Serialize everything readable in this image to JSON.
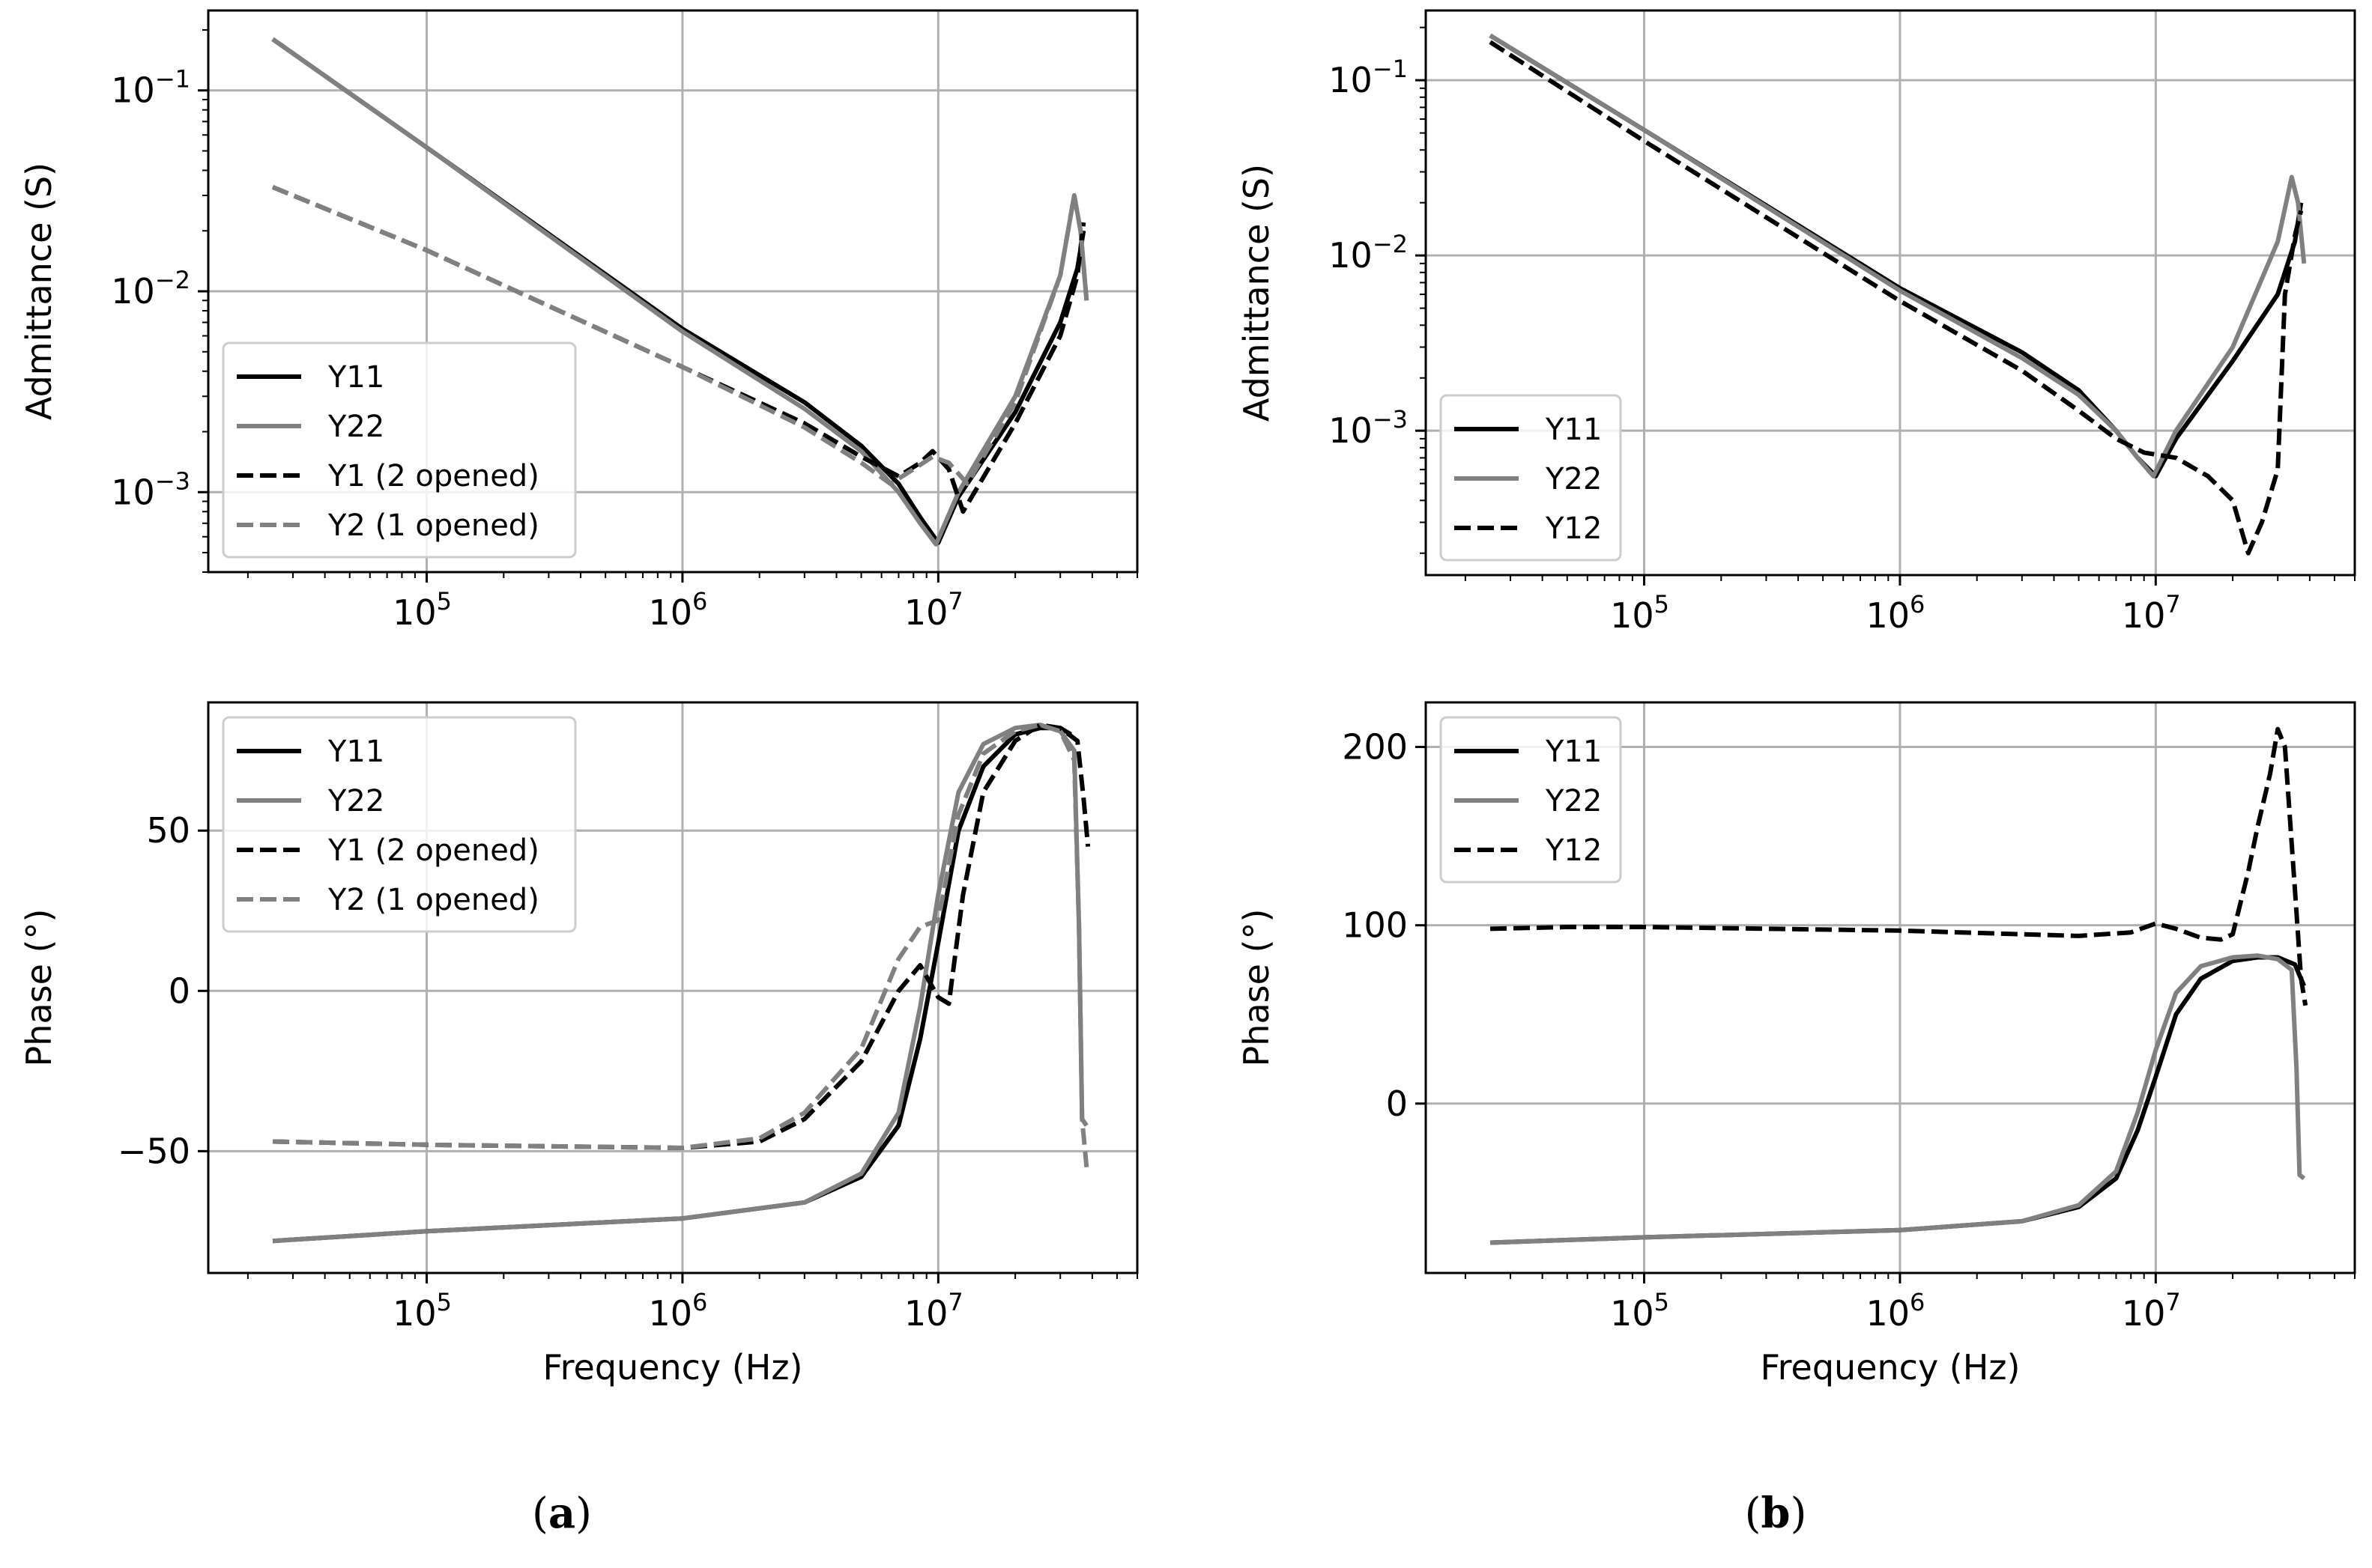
{
  "figure": {
    "panels": [
      {
        "label_prefix": "(",
        "label_letter": "a",
        "label_suffix": ")"
      },
      {
        "label_prefix": "(",
        "label_letter": "b",
        "label_suffix": ")"
      }
    ]
  },
  "chart_data": [
    {
      "id": "a-admittance",
      "type": "line",
      "xscale": "log",
      "yscale": "log",
      "xlabel": "",
      "ylabel": "Admittance (S)",
      "xlim": [
        14000,
        60000000
      ],
      "ylim": [
        0.0004,
        0.25
      ],
      "xticks": [
        {
          "base": "10",
          "exp": "5",
          "value": 100000
        },
        {
          "base": "10",
          "exp": "6",
          "value": 1000000
        },
        {
          "base": "10",
          "exp": "7",
          "value": 10000000
        }
      ],
      "yticks": [
        {
          "base": "10",
          "exp": "−1",
          "value": 0.1
        },
        {
          "base": "10",
          "exp": "−2",
          "value": 0.01
        },
        {
          "base": "10",
          "exp": "−3",
          "value": 0.001
        }
      ],
      "legend_position": "lower-left",
      "series": [
        {
          "name": "Y11",
          "color": "#000000",
          "dash": "solid",
          "x": [
            25000,
            100000,
            1000000,
            3000000,
            5000000,
            7000000,
            8500000,
            10000000,
            12000000,
            20000000,
            30000000,
            35000000,
            37000000
          ],
          "y": [
            0.18,
            0.052,
            0.0065,
            0.0028,
            0.0017,
            0.0011,
            0.00075,
            0.00056,
            0.00095,
            0.0025,
            0.007,
            0.013,
            0.02
          ]
        },
        {
          "name": "Y22",
          "color": "#808080",
          "dash": "solid",
          "x": [
            25000,
            100000,
            1000000,
            3000000,
            5000000,
            7000000,
            8500000,
            9800000,
            12000000,
            20000000,
            30000000,
            34000000,
            36000000,
            38000000
          ],
          "y": [
            0.18,
            0.052,
            0.0063,
            0.0026,
            0.0016,
            0.001,
            0.0007,
            0.00055,
            0.001,
            0.003,
            0.012,
            0.03,
            0.02,
            0.009
          ]
        },
        {
          "name": "Y1 (2 opened)",
          "color": "#000000",
          "dash": "dashed",
          "x": [
            25000,
            100000,
            1000000,
            3000000,
            5000000,
            7000000,
            8500000,
            9500000,
            11000000,
            12500000,
            20000000,
            30000000,
            35000000,
            37000000
          ],
          "y": [
            0.033,
            0.016,
            0.0042,
            0.0022,
            0.0015,
            0.0012,
            0.0014,
            0.0016,
            0.0013,
            0.0008,
            0.0022,
            0.006,
            0.012,
            0.022
          ]
        },
        {
          "name": "Y2 (1 opened)",
          "color": "#808080",
          "dash": "dashed",
          "x": [
            25000,
            100000,
            1000000,
            3000000,
            5000000,
            6500000,
            8000000,
            9500000,
            11000000,
            13000000,
            20000000,
            30000000,
            34000000,
            36000000,
            38000000
          ],
          "y": [
            0.033,
            0.016,
            0.0042,
            0.0021,
            0.0014,
            0.0011,
            0.0013,
            0.0015,
            0.0014,
            0.0011,
            0.0028,
            0.012,
            0.03,
            0.02,
            0.009
          ]
        }
      ]
    },
    {
      "id": "a-phase",
      "type": "line",
      "xscale": "log",
      "yscale": "linear",
      "xlabel": "Frequency (Hz)",
      "ylabel": "Phase (°)",
      "xlim": [
        14000,
        60000000
      ],
      "ylim": [
        -88,
        90
      ],
      "xticks": [
        {
          "base": "10",
          "exp": "5",
          "value": 100000
        },
        {
          "base": "10",
          "exp": "6",
          "value": 1000000
        },
        {
          "base": "10",
          "exp": "7",
          "value": 10000000
        }
      ],
      "yticks": [
        {
          "text": "50",
          "value": 50
        },
        {
          "text": "0",
          "value": 0
        },
        {
          "text": "−50",
          "value": -50
        }
      ],
      "legend_position": "upper-left",
      "series": [
        {
          "name": "Y11",
          "color": "#000000",
          "dash": "solid",
          "x": [
            25000,
            100000,
            1000000,
            3000000,
            5000000,
            7000000,
            8500000,
            10000000,
            12000000,
            15000000,
            20000000,
            25000000,
            30000000,
            33000000
          ],
          "y": [
            -78,
            -75,
            -71,
            -66,
            -58,
            -42,
            -15,
            15,
            50,
            70,
            80,
            82,
            82,
            80
          ]
        },
        {
          "name": "Y22",
          "color": "#808080",
          "dash": "solid",
          "x": [
            25000,
            100000,
            1000000,
            3000000,
            5000000,
            7000000,
            8500000,
            10000000,
            12000000,
            15000000,
            20000000,
            25000000,
            30000000,
            34000000,
            35500000,
            36500000,
            38000000
          ],
          "y": [
            -78,
            -75,
            -71,
            -66,
            -57,
            -38,
            -5,
            30,
            62,
            77,
            82,
            83,
            81,
            75,
            20,
            -40,
            -42
          ]
        },
        {
          "name": "Y1 (2 opened)",
          "color": "#000000",
          "dash": "dashed",
          "x": [
            25000,
            100000,
            1000000,
            2000000,
            3000000,
            5000000,
            7000000,
            8500000,
            10000000,
            11000000,
            12500000,
            15000000,
            20000000,
            25000000,
            30000000,
            35000000,
            37000000,
            38500000
          ],
          "y": [
            -47,
            -48,
            -49,
            -47,
            -40,
            -22,
            0,
            8,
            -2,
            -4,
            30,
            62,
            78,
            83,
            82,
            78,
            60,
            45
          ]
        },
        {
          "name": "Y2 (1 opened)",
          "color": "#808080",
          "dash": "dashed",
          "x": [
            25000,
            100000,
            1000000,
            2000000,
            3000000,
            5000000,
            7000000,
            8500000,
            10000000,
            12000000,
            15000000,
            20000000,
            25000000,
            30000000,
            34000000,
            35500000,
            36500000,
            38000000
          ],
          "y": [
            -47,
            -48,
            -49,
            -46,
            -38,
            -18,
            10,
            20,
            22,
            55,
            74,
            81,
            83,
            81,
            72,
            20,
            -40,
            -55
          ]
        }
      ]
    },
    {
      "id": "b-admittance",
      "type": "line",
      "xscale": "log",
      "yscale": "log",
      "xlabel": "",
      "ylabel": "Admittance (S)",
      "xlim": [
        14000,
        60000000
      ],
      "ylim": [
        0.00015,
        0.25
      ],
      "xticks": [
        {
          "base": "10",
          "exp": "5",
          "value": 100000
        },
        {
          "base": "10",
          "exp": "6",
          "value": 1000000
        },
        {
          "base": "10",
          "exp": "7",
          "value": 10000000
        }
      ],
      "yticks": [
        {
          "base": "10",
          "exp": "−1",
          "value": 0.1
        },
        {
          "base": "10",
          "exp": "−2",
          "value": 0.01
        },
        {
          "base": "10",
          "exp": "−3",
          "value": 0.001
        }
      ],
      "legend_position": "lower-left",
      "series": [
        {
          "name": "Y11",
          "color": "#000000",
          "dash": "solid",
          "x": [
            25000,
            100000,
            1000000,
            3000000,
            5000000,
            7000000,
            8500000,
            10000000,
            12000000,
            20000000,
            30000000,
            35000000,
            37000000
          ],
          "y": [
            0.18,
            0.052,
            0.0065,
            0.0028,
            0.0017,
            0.001,
            0.0007,
            0.00055,
            0.0009,
            0.0025,
            0.006,
            0.012,
            0.02
          ]
        },
        {
          "name": "Y22",
          "color": "#808080",
          "dash": "solid",
          "x": [
            25000,
            100000,
            1000000,
            3000000,
            5000000,
            7000000,
            8500000,
            9800000,
            12000000,
            20000000,
            30000000,
            34000000,
            36000000,
            38000000
          ],
          "y": [
            0.18,
            0.052,
            0.0063,
            0.0026,
            0.0016,
            0.001,
            0.0007,
            0.00055,
            0.001,
            0.003,
            0.012,
            0.028,
            0.02,
            0.009
          ]
        },
        {
          "name": "Y12",
          "color": "#000000",
          "dash": "dashed",
          "x": [
            25000,
            100000,
            1000000,
            3000000,
            5000000,
            7000000,
            9000000,
            12000000,
            16000000,
            20000000,
            23000000,
            26000000,
            30000000,
            32000000,
            35000000,
            37000000
          ],
          "y": [
            0.165,
            0.045,
            0.0055,
            0.0022,
            0.0013,
            0.0009,
            0.00075,
            0.0007,
            0.00055,
            0.0004,
            0.0002,
            0.0003,
            0.0006,
            0.006,
            0.013,
            0.018
          ]
        }
      ]
    },
    {
      "id": "b-phase",
      "type": "line",
      "xscale": "log",
      "yscale": "linear",
      "xlabel": "Frequency (Hz)",
      "ylabel": "Phase (°)",
      "xlim": [
        14000,
        60000000
      ],
      "ylim": [
        -95,
        225
      ],
      "xticks": [
        {
          "base": "10",
          "exp": "5",
          "value": 100000
        },
        {
          "base": "10",
          "exp": "6",
          "value": 1000000
        },
        {
          "base": "10",
          "exp": "7",
          "value": 10000000
        }
      ],
      "yticks": [
        {
          "text": "200",
          "value": 200
        },
        {
          "text": "100",
          "value": 100
        },
        {
          "text": "0",
          "value": 0
        }
      ],
      "legend_position": "upper-left",
      "series": [
        {
          "name": "Y11",
          "color": "#000000",
          "dash": "solid",
          "x": [
            25000,
            100000,
            1000000,
            3000000,
            5000000,
            7000000,
            8500000,
            10000000,
            12000000,
            15000000,
            20000000,
            25000000,
            30000000,
            35000000,
            38000000
          ],
          "y": [
            -78,
            -75,
            -71,
            -66,
            -58,
            -42,
            -15,
            15,
            50,
            70,
            80,
            82,
            82,
            78,
            66
          ]
        },
        {
          "name": "Y22",
          "color": "#808080",
          "dash": "solid",
          "x": [
            25000,
            100000,
            1000000,
            3000000,
            5000000,
            7000000,
            8500000,
            10000000,
            12000000,
            15000000,
            20000000,
            25000000,
            30000000,
            34000000,
            35500000,
            36500000,
            38000000
          ],
          "y": [
            -78,
            -75,
            -71,
            -66,
            -57,
            -38,
            -5,
            30,
            62,
            77,
            82,
            83,
            81,
            75,
            20,
            -40,
            -42
          ]
        },
        {
          "name": "Y12",
          "color": "#000000",
          "dash": "dashed",
          "x": [
            25000,
            50000,
            100000,
            1000000,
            5000000,
            8000000,
            10000000,
            12000000,
            15000000,
            18000000,
            20000000,
            23000000,
            25000000,
            28000000,
            30000000,
            32000000,
            35000000,
            37000000,
            38500000
          ],
          "y": [
            98,
            99,
            99,
            97,
            94,
            96,
            101,
            98,
            93,
            92,
            95,
            130,
            155,
            185,
            210,
            200,
            120,
            70,
            55
          ]
        }
      ]
    }
  ]
}
